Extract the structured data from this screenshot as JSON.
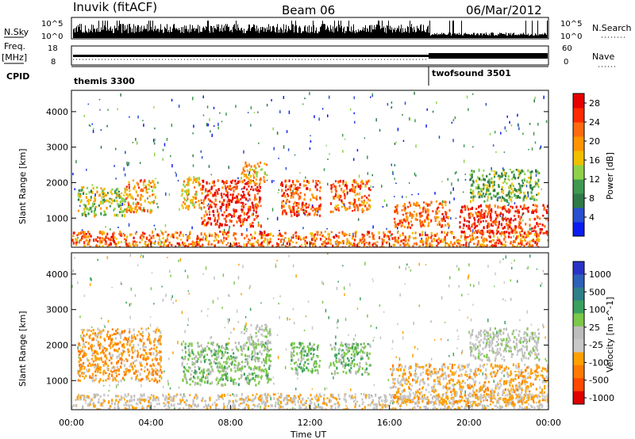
{
  "header": {
    "station": "Inuvik (fitACF)",
    "beam": "Beam 06",
    "date": "06/Mar/2012"
  },
  "panels": {
    "nsky_label": "N.Sky",
    "nsky_tick_hi": "10^5",
    "nsky_tick_lo": "10^0",
    "nsearch_label": "N.Search",
    "nsearch_tick_hi": "10^5",
    "nsearch_tick_lo": "10^0",
    "freq_label": "Freq.",
    "freq_unit": "[MHz]",
    "freq_tick_hi": "18",
    "freq_tick_lo": "8",
    "nave_label": "Nave",
    "nave_tick_hi": "60",
    "nave_tick_lo": "0",
    "cpid_label": "CPID",
    "cpid_1": "themis 3300",
    "cpid_2": "twofsound 3501",
    "xaxis_title": "Time UT"
  },
  "colors": {
    "power_scale": [
      "#0b1cf0",
      "#2a4fd1",
      "#2f7a48",
      "#3f9a50",
      "#8fd24a",
      "#f0c000",
      "#ff9400",
      "#ff6a10",
      "#ff2a00",
      "#e60000"
    ],
    "velocity_scale": [
      "#2a33c8",
      "#2d60b8",
      "#2f7f88",
      "#3aa060",
      "#7cc84a",
      "#bdbdbd",
      "#c8c8c8",
      "#ffa000",
      "#ff7a00",
      "#ff4800",
      "#e00000"
    ]
  },
  "chart_data": [
    {
      "type": "heatmap",
      "title": "Power",
      "ylabel": "Slant Range [km]",
      "xlabel": "Time UT",
      "x_ticks": [
        "00:00",
        "04:00",
        "08:00",
        "12:00",
        "16:00",
        "20:00",
        "00:00"
      ],
      "y_ticks": [
        1000,
        2000,
        3000,
        4000
      ],
      "ylim": [
        180,
        4600
      ],
      "colorbar_label": "Power [dB]",
      "colorbar_ticks": [
        4,
        8,
        12,
        16,
        20,
        24,
        28
      ],
      "colorbar_range": [
        0,
        30
      ],
      "echo_regions": [
        {
          "t_start": 0.0,
          "t_end": 24.0,
          "r_start": 180,
          "r_end": 650,
          "power": 22
        },
        {
          "t_start": 0.3,
          "t_end": 2.7,
          "r_start": 1100,
          "r_end": 1900,
          "power": 14
        },
        {
          "t_start": 2.7,
          "t_end": 4.2,
          "r_start": 1200,
          "r_end": 2100,
          "power": 20
        },
        {
          "t_start": 5.5,
          "t_end": 6.5,
          "r_start": 1300,
          "r_end": 2200,
          "power": 18
        },
        {
          "t_start": 6.5,
          "t_end": 9.5,
          "r_start": 800,
          "r_end": 2100,
          "power": 26
        },
        {
          "t_start": 8.5,
          "t_end": 9.8,
          "r_start": 2000,
          "r_end": 2600,
          "power": 18
        },
        {
          "t_start": 10.5,
          "t_end": 12.5,
          "r_start": 1100,
          "r_end": 2100,
          "power": 24
        },
        {
          "t_start": 13.0,
          "t_end": 15.0,
          "r_start": 1200,
          "r_end": 2100,
          "power": 22
        },
        {
          "t_start": 16.2,
          "t_end": 19.0,
          "r_start": 750,
          "r_end": 1500,
          "power": 22
        },
        {
          "t_start": 19.5,
          "t_end": 24.0,
          "r_start": 600,
          "r_end": 1400,
          "power": 26
        },
        {
          "t_start": 20.0,
          "t_end": 23.5,
          "r_start": 1500,
          "r_end": 2400,
          "power": 12
        }
      ]
    },
    {
      "type": "heatmap",
      "title": "Velocity",
      "ylabel": "Slant Range [km]",
      "xlabel": "Time UT",
      "x_ticks": [
        "00:00",
        "04:00",
        "08:00",
        "12:00",
        "16:00",
        "20:00",
        "00:00"
      ],
      "y_ticks": [
        1000,
        2000,
        3000,
        4000
      ],
      "ylim": [
        180,
        4600
      ],
      "colorbar_label": "Velocity [m s^-1]",
      "colorbar_ticks": [
        "1000",
        "500",
        "100",
        "25",
        "-25",
        "-100",
        "-500",
        "-1000"
      ],
      "echo_regions": [
        {
          "t_start": 0.0,
          "t_end": 24.0,
          "r_start": 180,
          "r_end": 650,
          "velocity": -200
        },
        {
          "t_start": 0.3,
          "t_end": 4.5,
          "r_start": 1000,
          "r_end": 2500,
          "velocity": -400
        },
        {
          "t_start": 5.5,
          "t_end": 10.0,
          "r_start": 900,
          "r_end": 2100,
          "velocity": 150
        },
        {
          "t_start": 8.5,
          "t_end": 10.0,
          "r_start": 2000,
          "r_end": 2600,
          "velocity": 0
        },
        {
          "t_start": 11.0,
          "t_end": 12.5,
          "r_start": 1200,
          "r_end": 2100,
          "velocity": 200
        },
        {
          "t_start": 13.0,
          "t_end": 15.0,
          "r_start": 1200,
          "r_end": 2100,
          "velocity": 150
        },
        {
          "t_start": 16.0,
          "t_end": 24.0,
          "r_start": 400,
          "r_end": 1500,
          "velocity": -300
        },
        {
          "t_start": 20.0,
          "t_end": 23.5,
          "r_start": 1600,
          "r_end": 2500,
          "velocity": 0
        }
      ]
    }
  ]
}
